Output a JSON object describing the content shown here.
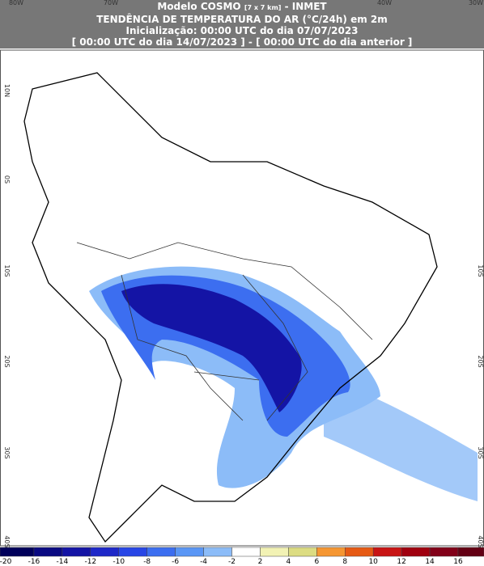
{
  "header": {
    "line1": "Modelo COSMO",
    "resolution": "[7 x 7 km]",
    "line1_suffix": "- INMET",
    "line2": "TENDÊNCIA DE TEMPERATURA DO AR (°C/24h) em 2m",
    "line3": "Inicialização: 00:00 UTC do dia 07/07/2023",
    "line4": "[ 00:00 UTC do dia 14/07/2023 ] - [ 00:00 UTC do dia anterior ]"
  },
  "top_labels": [
    "80W",
    "70W",
    "40W",
    "30W"
  ],
  "left_labels": [
    "10N",
    "0S",
    "10S",
    "20S",
    "30S",
    "40S"
  ],
  "right_labels": [
    "10S",
    "20S",
    "30S",
    "40S"
  ],
  "colorbar": {
    "labels": [
      -20,
      -16,
      -14,
      -12,
      -10,
      -8,
      -6,
      -4,
      -2,
      2,
      4,
      6,
      8,
      10,
      12,
      14,
      16
    ],
    "colors": [
      "#00005a",
      "#0a0a82",
      "#1414a5",
      "#1e28c8",
      "#2846e6",
      "#3c6ef0",
      "#5a96f5",
      "#8cbcf8",
      "#ffffff",
      "#f2f2b4",
      "#dcdc82",
      "#f59632",
      "#e65a14",
      "#c81414",
      "#a0000f",
      "#820019",
      "#640014"
    ]
  }
}
